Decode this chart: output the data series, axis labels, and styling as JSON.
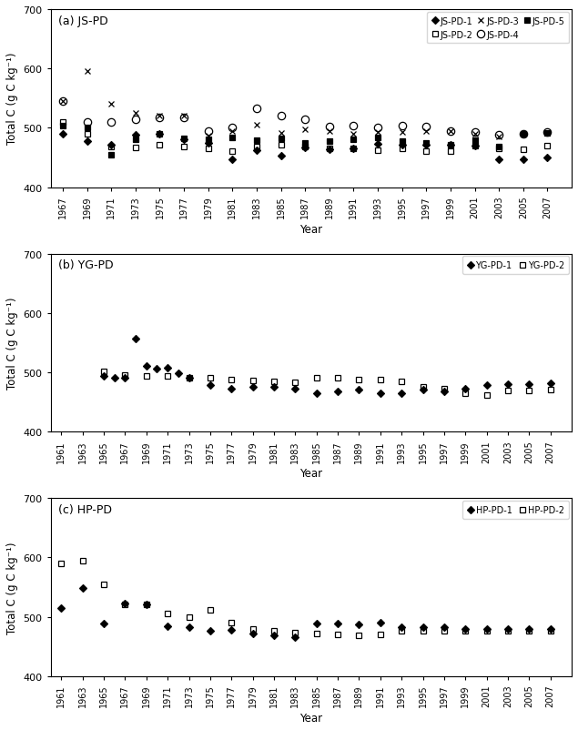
{
  "panel_a": {
    "title": "(a) JS-PD",
    "xlim": [
      1966,
      2009
    ],
    "xticks": [
      1967,
      1969,
      1971,
      1973,
      1975,
      1977,
      1979,
      1981,
      1983,
      1985,
      1987,
      1989,
      1991,
      1993,
      1995,
      1997,
      1999,
      2001,
      2003,
      2005,
      2007
    ],
    "ylim": [
      400,
      700
    ],
    "yticks": [
      400,
      500,
      600,
      700
    ],
    "series": [
      {
        "name": "JS-PD-1",
        "years": [
          1967,
          1969,
          1971,
          1973,
          1975,
          1977,
          1979,
          1981,
          1983,
          1985,
          1987,
          1989,
          1991,
          1993,
          1995,
          1997,
          1999,
          2001,
          2003,
          2005,
          2007
        ],
        "values": [
          490,
          477,
          472,
          488,
          490,
          480,
          475,
          447,
          462,
          453,
          467,
          463,
          465,
          473,
          472,
          471,
          472,
          470,
          447,
          447,
          450
        ],
        "marker": "D",
        "fillstyle": "full",
        "markersize": 4
      },
      {
        "name": "JS-PD-2",
        "years": [
          1967,
          1969,
          1971,
          1973,
          1975,
          1977,
          1979,
          1981,
          1983,
          1985,
          1987,
          1989,
          1991,
          1993,
          1995,
          1997,
          1999,
          2001,
          2003,
          2005,
          2007
        ],
        "values": [
          510,
          490,
          468,
          467,
          471,
          468,
          466,
          460,
          468,
          472,
          468,
          465,
          465,
          462,
          465,
          460,
          461,
          470,
          465,
          463,
          470
        ],
        "marker": "s",
        "fillstyle": "none",
        "markersize": 5
      },
      {
        "name": "JS-PD-3",
        "years": [
          1967,
          1969,
          1971,
          1973,
          1975,
          1977,
          1979,
          1981,
          1983,
          1985,
          1987,
          1989,
          1991,
          1993,
          1995,
          1997,
          1999,
          2001,
          2003,
          2005,
          2007
        ],
        "values": [
          545,
          595,
          540,
          525,
          520,
          520,
          487,
          495,
          505,
          492,
          498,
          495,
          490,
          493,
          493,
          495,
          495,
          490,
          485,
          490,
          492
        ],
        "marker": "x",
        "fillstyle": "full",
        "markersize": 5
      },
      {
        "name": "JS-PD-4",
        "years": [
          1967,
          1969,
          1971,
          1973,
          1975,
          1977,
          1979,
          1981,
          1983,
          1985,
          1987,
          1989,
          1991,
          1993,
          1995,
          1997,
          1999,
          2001,
          2003,
          2005,
          2007
        ],
        "values": [
          545,
          510,
          510,
          515,
          518,
          517,
          495,
          500,
          532,
          520,
          515,
          502,
          503,
          500,
          503,
          502,
          495,
          493,
          488,
          490,
          493
        ],
        "marker": "o",
        "fillstyle": "none",
        "markersize": 6
      },
      {
        "name": "JS-PD-5",
        "years": [
          1967,
          1969,
          1971,
          1973,
          1975,
          1977,
          1979,
          1981,
          1983,
          1985,
          1987,
          1989,
          1991,
          1993,
          1995,
          1997,
          1999,
          2001,
          2003,
          2005,
          2007
        ],
        "values": [
          503,
          500,
          455,
          480,
          490,
          482,
          480,
          483,
          479,
          482,
          475,
          478,
          480,
          483,
          478,
          474,
          472,
          479,
          468,
          490,
          492
        ],
        "marker": "s",
        "fillstyle": "full",
        "markersize": 5
      }
    ],
    "legend_ncol": 3,
    "legend_order": [
      0,
      1,
      2,
      3,
      4
    ]
  },
  "panel_b": {
    "title": "(b) YG-PD",
    "xlim": [
      1960,
      2009
    ],
    "xticks": [
      1961,
      1963,
      1965,
      1967,
      1969,
      1971,
      1973,
      1975,
      1977,
      1979,
      1981,
      1983,
      1985,
      1987,
      1989,
      1991,
      1993,
      1995,
      1997,
      1999,
      2001,
      2003,
      2005,
      2007
    ],
    "ylim": [
      400,
      700
    ],
    "yticks": [
      400,
      500,
      600,
      700
    ],
    "series": [
      {
        "name": "YG-PD-1",
        "years": [
          1965,
          1966,
          1967,
          1968,
          1969,
          1970,
          1971,
          1972,
          1973,
          1975,
          1977,
          1979,
          1981,
          1983,
          1985,
          1987,
          1989,
          1991,
          1993,
          1995,
          1997,
          1999,
          2001,
          2003,
          2005,
          2007
        ],
        "values": [
          493,
          490,
          490,
          556,
          510,
          506,
          507,
          498,
          490,
          479,
          473,
          476,
          475,
          472,
          465,
          468,
          471,
          465,
          465,
          470,
          467,
          473,
          478,
          480,
          480,
          482
        ],
        "marker": "D",
        "fillstyle": "full",
        "markersize": 4
      },
      {
        "name": "YG-PD-2",
        "years": [
          1965,
          1967,
          1969,
          1971,
          1973,
          1975,
          1977,
          1979,
          1981,
          1983,
          1985,
          1987,
          1989,
          1991,
          1993,
          1995,
          1997,
          1999,
          2001,
          2003,
          2005,
          2007
        ],
        "values": [
          501,
          495,
          494,
          494,
          490,
          490,
          487,
          486,
          485,
          483,
          490,
          490,
          488,
          487,
          484,
          475,
          473,
          465,
          462,
          469,
          469,
          470
        ],
        "marker": "s",
        "fillstyle": "none",
        "markersize": 5
      }
    ],
    "legend_ncol": 2,
    "legend_order": [
      0,
      1
    ]
  },
  "panel_c": {
    "title": "(c) HP-PD",
    "xlim": [
      1960,
      2009
    ],
    "xticks": [
      1961,
      1963,
      1965,
      1967,
      1969,
      1971,
      1973,
      1975,
      1977,
      1979,
      1981,
      1983,
      1985,
      1987,
      1989,
      1991,
      1993,
      1995,
      1997,
      1999,
      2001,
      2003,
      2005,
      2007
    ],
    "ylim": [
      400,
      700
    ],
    "yticks": [
      400,
      500,
      600,
      700
    ],
    "series": [
      {
        "name": "HP-PD-1",
        "years": [
          1961,
          1963,
          1965,
          1967,
          1969,
          1971,
          1973,
          1975,
          1977,
          1979,
          1981,
          1983,
          1985,
          1987,
          1989,
          1991,
          1993,
          1995,
          1997,
          1999,
          2001,
          2003,
          2005,
          2007
        ],
        "values": [
          515,
          548,
          488,
          522,
          520,
          484,
          483,
          477,
          478,
          472,
          468,
          465,
          488,
          488,
          487,
          490,
          483,
          483,
          482,
          480,
          480,
          480,
          480,
          480
        ],
        "marker": "D",
        "fillstyle": "full",
        "markersize": 4
      },
      {
        "name": "HP-PD-2",
        "years": [
          1961,
          1963,
          1965,
          1967,
          1969,
          1971,
          1973,
          1975,
          1977,
          1979,
          1981,
          1983,
          1985,
          1987,
          1989,
          1991,
          1993,
          1995,
          1997,
          1999,
          2001,
          2003,
          2005,
          2007
        ],
        "values": [
          590,
          595,
          555,
          520,
          520,
          505,
          500,
          512,
          490,
          480,
          477,
          473,
          472,
          470,
          468,
          470,
          477,
          477,
          476,
          477,
          477,
          477,
          477,
          477
        ],
        "marker": "s",
        "fillstyle": "none",
        "markersize": 5
      }
    ],
    "legend_ncol": 2,
    "legend_order": [
      0,
      1
    ]
  },
  "ylabel": "Total C (g C kg⁻¹)",
  "xlabel": "Year"
}
